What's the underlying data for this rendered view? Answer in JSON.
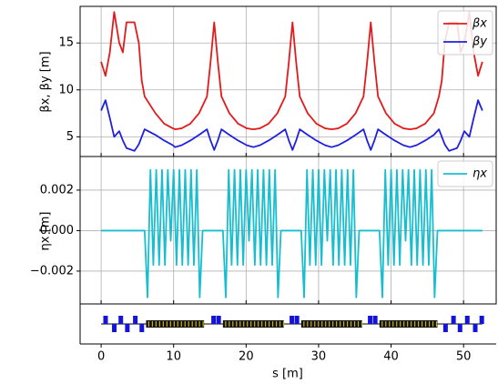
{
  "chart_data": [
    {
      "type": "line",
      "ylabel": "βx, βy [m]",
      "legend": "upper right",
      "grid": true,
      "xlim": [
        -2.9,
        54.5
      ],
      "xticks": [
        0,
        10,
        20,
        30,
        40,
        50
      ],
      "ylim": [
        2.9,
        18.9
      ],
      "yticks": [
        5,
        10,
        15
      ],
      "x": [
        0,
        0.6,
        1.2,
        1.8,
        2.5,
        3.0,
        3.5,
        4.6,
        5.2,
        5.6,
        6.0,
        7.5,
        8.7,
        9.9,
        10.2,
        11.1,
        12.3,
        13.5,
        14.6,
        15.1,
        15.6,
        16.1,
        16.6,
        17.7,
        18.9,
        20.1,
        21.0,
        21.9,
        23.1,
        24.3,
        25.4,
        25.9,
        26.4,
        26.9,
        27.4,
        28.5,
        29.7,
        30.9,
        31.8,
        32.7,
        33.9,
        35.1,
        36.2,
        36.7,
        37.2,
        37.7,
        38.2,
        39.3,
        40.5,
        41.7,
        42.6,
        43.5,
        44.7,
        45.9,
        46.6,
        47.0,
        47.4,
        48.0,
        49.1,
        49.6,
        50.1,
        50.8,
        51.4,
        52.0,
        52.6
      ],
      "series": [
        {
          "name": "βx",
          "color": "#e31a1c",
          "values": [
            13,
            11.5,
            14,
            18.3,
            15,
            14,
            17.2,
            17.2,
            15,
            11,
            9.3,
            7.5,
            6.4,
            5.9,
            5.8,
            5.9,
            6.4,
            7.5,
            9.3,
            13,
            17.2,
            13,
            9.3,
            7.5,
            6.4,
            5.9,
            5.8,
            5.9,
            6.4,
            7.5,
            9.3,
            13,
            17.2,
            13,
            9.3,
            7.5,
            6.4,
            5.9,
            5.8,
            5.9,
            6.4,
            7.5,
            9.3,
            13,
            17.2,
            13,
            9.3,
            7.5,
            6.4,
            5.9,
            5.8,
            5.9,
            6.4,
            7.5,
            9.3,
            11,
            15,
            17.2,
            17.2,
            14,
            15,
            18.3,
            14,
            11.5,
            13
          ]
        },
        {
          "name": "βy",
          "color": "#1f1fe0",
          "values": [
            7.8,
            8.9,
            7.0,
            5.0,
            5.6,
            4.6,
            3.8,
            3.5,
            4.2,
            5.0,
            5.8,
            5.2,
            4.6,
            4.1,
            3.9,
            4.1,
            4.6,
            5.2,
            5.8,
            4.6,
            3.6,
            4.6,
            5.8,
            5.2,
            4.6,
            4.1,
            3.9,
            4.1,
            4.6,
            5.2,
            5.8,
            4.6,
            3.6,
            4.6,
            5.8,
            5.2,
            4.6,
            4.1,
            3.9,
            4.1,
            4.6,
            5.2,
            5.8,
            4.6,
            3.6,
            4.6,
            5.8,
            5.2,
            4.6,
            4.1,
            3.9,
            4.1,
            4.6,
            5.2,
            5.8,
            5.0,
            4.2,
            3.5,
            3.8,
            4.6,
            5.6,
            5.0,
            7.0,
            8.9,
            7.8
          ]
        }
      ]
    },
    {
      "type": "line",
      "ylabel": "ηx [m]",
      "xlabel": "s [m]",
      "legend": "upper right",
      "grid": true,
      "xlim": [
        -2.9,
        54.5
      ],
      "xticks": [
        0,
        10,
        20,
        30,
        40,
        50
      ],
      "ylim": [
        -0.00362,
        0.00366
      ],
      "yticks": [
        0.002,
        {
          "value": 0,
          "label": "0.000"
        },
        {
          "value": -0.002,
          "label": "−0.002"
        }
      ],
      "x": [
        0,
        6.0,
        6.4,
        6.8,
        7.2,
        7.6,
        8.0,
        8.4,
        8.8,
        9.2,
        9.6,
        10.0,
        10.4,
        10.8,
        11.2,
        11.6,
        12.0,
        12.4,
        12.8,
        13.2,
        13.6,
        14.0,
        16.8,
        17.2,
        17.6,
        18.0,
        18.4,
        18.8,
        19.2,
        19.6,
        20.0,
        20.4,
        20.8,
        21.2,
        21.6,
        22.0,
        22.4,
        22.8,
        23.2,
        23.6,
        24.0,
        24.4,
        24.8,
        27.6,
        28.0,
        28.4,
        28.8,
        29.2,
        29.6,
        30.0,
        30.4,
        30.8,
        31.2,
        31.6,
        32.0,
        32.4,
        32.8,
        33.2,
        33.6,
        34.0,
        34.4,
        34.8,
        35.2,
        35.6,
        38.4,
        38.8,
        39.2,
        39.6,
        40.0,
        40.4,
        40.8,
        41.2,
        41.6,
        42.0,
        42.4,
        42.8,
        43.2,
        43.6,
        44.0,
        44.4,
        44.8,
        45.2,
        45.6,
        46.0,
        46.4,
        52.6
      ],
      "series": [
        {
          "name": "ηx",
          "color": "#17becf",
          "values": [
            0,
            0,
            -0.0033,
            0.003,
            -0.0017,
            0.003,
            -0.0017,
            0.003,
            -0.0017,
            0.003,
            -0.0005,
            0.003,
            -0.0017,
            0.003,
            -0.0017,
            0.003,
            -0.0017,
            0.003,
            -0.0017,
            0.003,
            -0.0033,
            0,
            0,
            -0.0033,
            0.003,
            -0.0017,
            0.003,
            -0.0017,
            0.003,
            -0.0017,
            0.003,
            -0.0005,
            0.003,
            -0.0017,
            0.003,
            -0.0017,
            0.003,
            -0.0017,
            0.003,
            -0.0017,
            0.003,
            -0.0033,
            0,
            0,
            -0.0033,
            0.003,
            -0.0017,
            0.003,
            -0.0017,
            0.003,
            -0.0017,
            0.003,
            -0.0005,
            0.003,
            -0.0017,
            0.003,
            -0.0017,
            0.003,
            -0.0017,
            0.003,
            -0.0017,
            0.003,
            -0.0033,
            0,
            0,
            -0.0033,
            0.003,
            -0.0017,
            0.003,
            -0.0017,
            0.003,
            -0.0017,
            0.003,
            -0.0005,
            0.003,
            -0.0017,
            0.003,
            -0.0017,
            0.003,
            -0.0017,
            0.003,
            -0.0017,
            0.003,
            -0.0033,
            0,
            0
          ]
        }
      ]
    }
  ]
}
